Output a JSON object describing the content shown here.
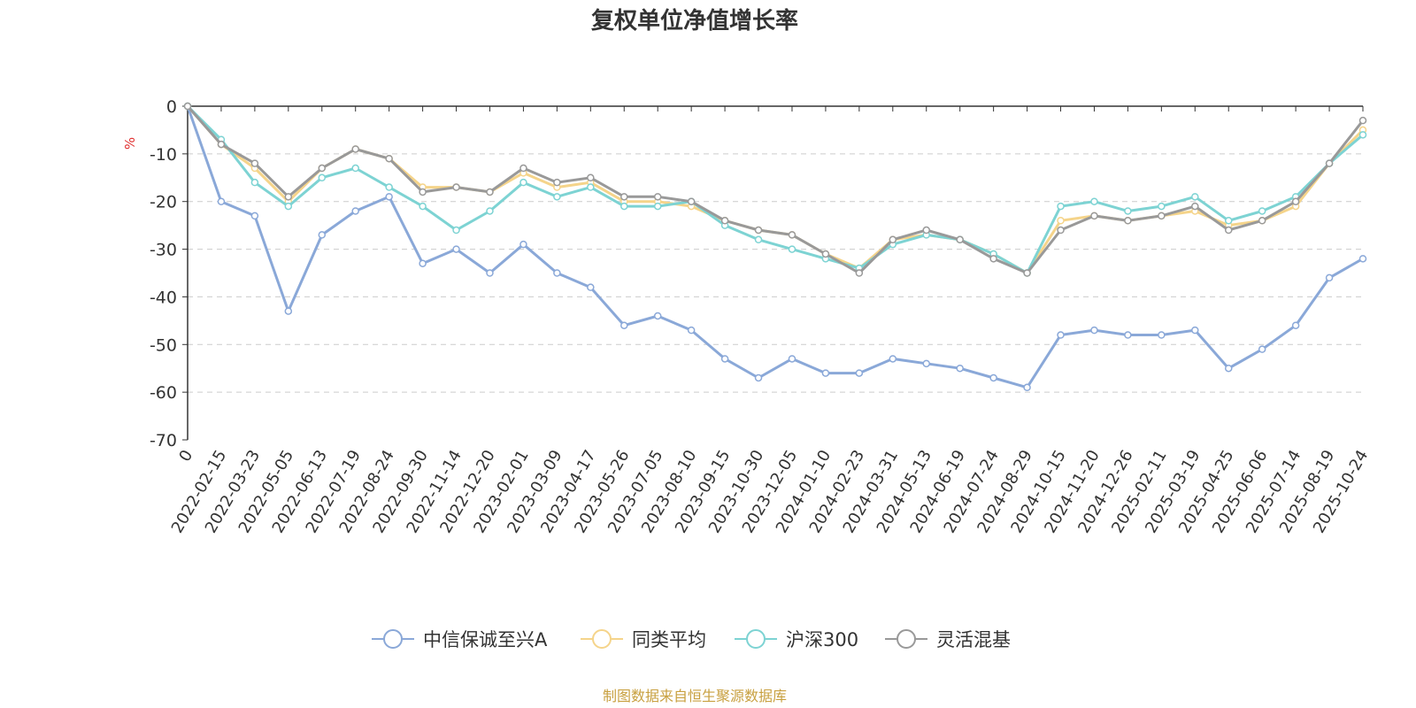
{
  "chart_data": {
    "type": "line",
    "title": "复权单位净值增长率",
    "ylabel": "%",
    "ylim": [
      -70,
      0
    ],
    "yticks": [
      0,
      -10,
      -20,
      -30,
      -40,
      -50,
      -60,
      -70
    ],
    "grid": true,
    "legend_position": "bottom",
    "source_note": "制图数据来自恒生聚源数据库",
    "colors": {
      "unit_label": "#e03030",
      "source_note": "#c8a040",
      "grid": "#cccccc",
      "axis": "#333333"
    },
    "x": [
      "0",
      "2022-02-15",
      "2022-03-23",
      "2022-05-05",
      "2022-06-13",
      "2022-07-19",
      "2022-08-24",
      "2022-09-30",
      "2022-11-14",
      "2022-12-20",
      "2023-02-01",
      "2023-03-09",
      "2023-04-17",
      "2023-05-26",
      "2023-07-05",
      "2023-08-10",
      "2023-09-15",
      "2023-10-30",
      "2023-12-05",
      "2024-01-10",
      "2024-02-23",
      "2024-03-31",
      "2024-05-13",
      "2024-06-19",
      "2024-07-24",
      "2024-08-29",
      "2024-10-15",
      "2024-11-20",
      "2024-12-26",
      "2025-02-11",
      "2025-03-19",
      "2025-04-25",
      "2025-06-06",
      "2025-07-14",
      "2025-08-19",
      "2025-10-24"
    ],
    "series": [
      {
        "name": "中信保诚至兴A",
        "color": "#8aa8d8",
        "values": [
          0,
          -20,
          -23,
          -43,
          -27,
          -22,
          -19,
          -33,
          -30,
          -35,
          -29,
          -35,
          -38,
          -46,
          -44,
          -47,
          -53,
          -57,
          -53,
          -56,
          -56,
          -53,
          -54,
          -55,
          -57,
          -59,
          -48,
          -47,
          -48,
          -48,
          -47,
          -55,
          -51,
          -46,
          -36,
          -32
        ]
      },
      {
        "name": "同类平均",
        "color": "#f5d48a",
        "values": [
          0,
          -8,
          -13,
          -20,
          -13,
          -9,
          -11,
          -17,
          -17,
          -18,
          -14,
          -17,
          -16,
          -20,
          -20,
          -21,
          -24,
          -26,
          -27,
          -31,
          -34,
          -28,
          -27,
          -28,
          -31,
          -35,
          -24,
          -23,
          -24,
          -23,
          -22,
          -25,
          -24,
          -21,
          -12,
          -5
        ]
      },
      {
        "name": "沪深300",
        "color": "#7dd3d3",
        "values": [
          0,
          -7,
          -16,
          -21,
          -15,
          -13,
          -17,
          -21,
          -26,
          -22,
          -16,
          -19,
          -17,
          -21,
          -21,
          -20,
          -25,
          -28,
          -30,
          -32,
          -34,
          -29,
          -27,
          -28,
          -31,
          -35,
          -21,
          -20,
          -22,
          -21,
          -19,
          -24,
          -22,
          -19,
          -12,
          -6
        ]
      },
      {
        "name": "灵活混基",
        "color": "#999999",
        "values": [
          0,
          -8,
          -12,
          -19,
          -13,
          -9,
          -11,
          -18,
          -17,
          -18,
          -13,
          -16,
          -15,
          -19,
          -19,
          -20,
          -24,
          -26,
          -27,
          -31,
          -35,
          -28,
          -26,
          -28,
          -32,
          -35,
          -26,
          -23,
          -24,
          -23,
          -21,
          -26,
          -24,
          -20,
          -12,
          -3
        ]
      }
    ]
  }
}
